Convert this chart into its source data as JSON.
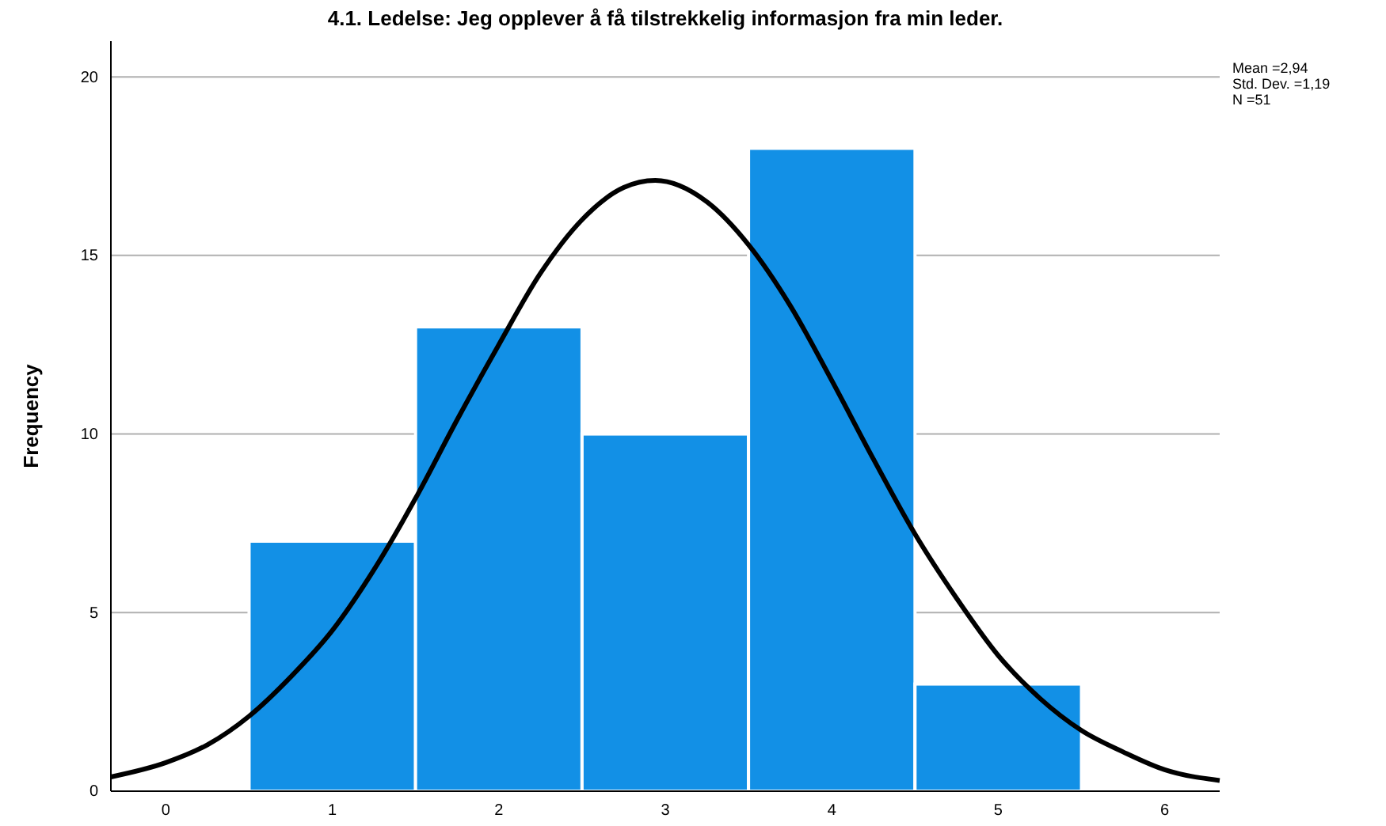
{
  "chart_data": {
    "type": "histogram",
    "title": "4.1. Ledelse: Jeg opplever å få tilstrekkelig informasjon fra min leder.",
    "ylabel": "Frequency",
    "bins": [
      0.5,
      1.5,
      2.5,
      3.5,
      4.5,
      5.5
    ],
    "values": [
      7,
      13,
      10,
      18,
      3
    ],
    "color": "#1290e6",
    "series": [
      {
        "type": "line",
        "color": "#000000",
        "x": [
          -0.33,
          0,
          0.25,
          0.5,
          0.75,
          1,
          1.25,
          1.5,
          1.75,
          2,
          2.25,
          2.5,
          2.75,
          2.94,
          3.25,
          3.5,
          3.75,
          4,
          4.25,
          4.5,
          4.75,
          5,
          5.25,
          5.5,
          5.75,
          6,
          6.33
        ],
        "values": [
          0.4,
          0.8,
          1.3,
          2.1,
          3.2,
          4.5,
          6.2,
          8.2,
          10.4,
          12.5,
          14.5,
          16.0,
          16.9,
          17.1,
          16.5,
          15.3,
          13.6,
          11.5,
          9.3,
          7.2,
          5.4,
          3.8,
          2.6,
          1.7,
          1.1,
          0.6,
          0.3
        ]
      }
    ],
    "xlim": [
      -0.33,
      6.33
    ],
    "xticks": [
      0,
      1,
      2,
      3,
      4,
      5,
      6
    ],
    "ylim": [
      0,
      21
    ],
    "yticks": [
      0,
      5,
      10,
      15,
      20
    ],
    "grid": "y",
    "annotations": [
      "Mean =2,94",
      "Std. Dev. =1,19",
      "N =51"
    ]
  }
}
